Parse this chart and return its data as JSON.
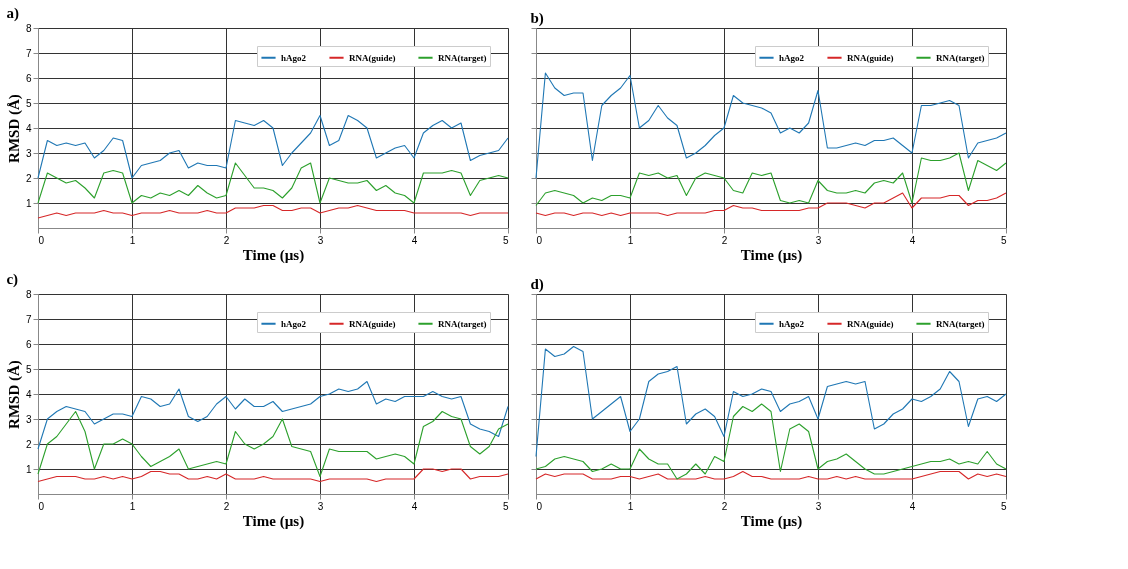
{
  "chart_data": [
    {
      "type": "line",
      "title": "a)",
      "xlabel": "Time (µs)",
      "ylabel": "RMSD (Å)",
      "xlim": [
        0,
        5
      ],
      "xticks": [
        0,
        1,
        2,
        3,
        4,
        5
      ],
      "ylim": [
        0,
        8
      ],
      "yticks": [
        1,
        2,
        3,
        4,
        5,
        6,
        7,
        8
      ],
      "grid": true,
      "legend": "top right",
      "x": [
        0,
        0.1,
        0.2,
        0.3,
        0.4,
        0.5,
        0.6,
        0.7,
        0.8,
        0.9,
        1,
        1.1,
        1.2,
        1.3,
        1.4,
        1.5,
        1.6,
        1.7,
        1.8,
        1.9,
        2,
        2.1,
        2.2,
        2.3,
        2.4,
        2.5,
        2.6,
        2.7,
        2.8,
        2.9,
        3,
        3.1,
        3.2,
        3.3,
        3.4,
        3.5,
        3.6,
        3.7,
        3.8,
        3.9,
        4,
        4.1,
        4.2,
        4.3,
        4.4,
        4.5,
        4.6,
        4.7,
        4.8,
        4.9,
        5
      ],
      "series": [
        {
          "name": "hAgo2",
          "color": "#1f77b4",
          "values": [
            2.0,
            3.5,
            3.3,
            3.4,
            3.3,
            3.4,
            2.8,
            3.1,
            3.6,
            3.5,
            2.0,
            2.5,
            2.6,
            2.7,
            3.0,
            3.1,
            2.4,
            2.6,
            2.5,
            2.5,
            2.4,
            4.3,
            4.2,
            4.1,
            4.3,
            4.0,
            2.5,
            3.0,
            3.4,
            3.8,
            4.5,
            3.3,
            3.5,
            4.5,
            4.3,
            4.0,
            2.8,
            3.0,
            3.2,
            3.3,
            2.8,
            3.8,
            4.1,
            4.3,
            4.0,
            4.2,
            2.7,
            2.9,
            3.0,
            3.1,
            3.6
          ]
        },
        {
          "name": "RNA(guide)",
          "color": "#d62728",
          "values": [
            0.4,
            0.5,
            0.6,
            0.5,
            0.6,
            0.6,
            0.6,
            0.7,
            0.6,
            0.6,
            0.5,
            0.6,
            0.6,
            0.6,
            0.7,
            0.6,
            0.6,
            0.6,
            0.7,
            0.6,
            0.6,
            0.8,
            0.8,
            0.8,
            0.9,
            0.9,
            0.7,
            0.7,
            0.8,
            0.8,
            0.6,
            0.7,
            0.8,
            0.8,
            0.9,
            0.8,
            0.7,
            0.7,
            0.7,
            0.7,
            0.6,
            0.6,
            0.6,
            0.6,
            0.6,
            0.6,
            0.5,
            0.6,
            0.6,
            0.6,
            0.6
          ]
        },
        {
          "name": "RNA(target)",
          "color": "#2ca02c",
          "values": [
            1.0,
            2.2,
            2.0,
            1.8,
            1.9,
            1.6,
            1.2,
            2.2,
            2.3,
            2.2,
            1.0,
            1.3,
            1.2,
            1.4,
            1.3,
            1.5,
            1.3,
            1.7,
            1.4,
            1.2,
            1.3,
            2.6,
            2.1,
            1.6,
            1.6,
            1.5,
            1.2,
            1.6,
            2.4,
            2.6,
            1.0,
            2.0,
            1.9,
            1.8,
            1.8,
            1.9,
            1.5,
            1.7,
            1.4,
            1.3,
            1.0,
            2.2,
            2.2,
            2.2,
            2.3,
            2.2,
            1.3,
            1.9,
            2.0,
            2.1,
            2.0
          ]
        }
      ]
    },
    {
      "type": "line",
      "title": "b)",
      "xlabel": "Time (µs)",
      "xlim": [
        0,
        5
      ],
      "xticks": [
        0,
        1,
        2,
        3,
        4,
        5
      ],
      "ylim": [
        0,
        8
      ],
      "yticks": [
        1,
        2,
        3,
        4,
        5,
        6,
        7,
        8
      ],
      "grid": true,
      "legend": "top right",
      "tick_labels": "x",
      "x": [
        0,
        0.1,
        0.2,
        0.3,
        0.4,
        0.5,
        0.6,
        0.7,
        0.8,
        0.9,
        1,
        1.1,
        1.2,
        1.3,
        1.4,
        1.5,
        1.6,
        1.7,
        1.8,
        1.9,
        2,
        2.1,
        2.2,
        2.3,
        2.4,
        2.5,
        2.6,
        2.7,
        2.8,
        2.9,
        3,
        3.1,
        3.2,
        3.3,
        3.4,
        3.5,
        3.6,
        3.7,
        3.8,
        3.9,
        4,
        4.1,
        4.2,
        4.3,
        4.4,
        4.5,
        4.6,
        4.7,
        4.8,
        4.9,
        5
      ],
      "series": [
        {
          "name": "hAgo2",
          "color": "#1f77b4",
          "values": [
            2.0,
            6.2,
            5.6,
            5.3,
            5.4,
            5.4,
            2.7,
            4.9,
            5.3,
            5.6,
            6.1,
            4.0,
            4.3,
            4.9,
            4.4,
            4.1,
            2.8,
            3.0,
            3.3,
            3.7,
            4.0,
            5.3,
            5.0,
            4.9,
            4.8,
            4.6,
            3.8,
            4.0,
            3.8,
            4.2,
            5.5,
            3.2,
            3.2,
            3.3,
            3.4,
            3.3,
            3.5,
            3.5,
            3.6,
            3.3,
            3.0,
            4.9,
            4.9,
            5.0,
            5.1,
            4.9,
            2.8,
            3.4,
            3.5,
            3.6,
            3.8
          ]
        },
        {
          "name": "RNA(guide)",
          "color": "#d62728",
          "values": [
            0.6,
            0.5,
            0.6,
            0.6,
            0.5,
            0.6,
            0.6,
            0.5,
            0.6,
            0.5,
            0.6,
            0.6,
            0.6,
            0.6,
            0.5,
            0.6,
            0.6,
            0.6,
            0.6,
            0.7,
            0.7,
            0.9,
            0.8,
            0.8,
            0.7,
            0.7,
            0.7,
            0.7,
            0.7,
            0.8,
            0.8,
            1.0,
            1.0,
            1.0,
            0.9,
            0.8,
            1.0,
            1.0,
            1.2,
            1.4,
            0.8,
            1.2,
            1.2,
            1.2,
            1.3,
            1.3,
            0.9,
            1.1,
            1.1,
            1.2,
            1.4
          ]
        },
        {
          "name": "RNA(target)",
          "color": "#2ca02c",
          "values": [
            0.9,
            1.4,
            1.5,
            1.4,
            1.3,
            1.0,
            1.2,
            1.1,
            1.3,
            1.3,
            1.2,
            2.2,
            2.1,
            2.2,
            2.0,
            2.1,
            1.3,
            2.0,
            2.2,
            2.1,
            2.0,
            1.5,
            1.4,
            2.2,
            2.1,
            2.2,
            1.1,
            1.0,
            1.1,
            1.0,
            1.9,
            1.5,
            1.4,
            1.4,
            1.5,
            1.4,
            1.8,
            1.9,
            1.8,
            2.2,
            1.0,
            2.8,
            2.7,
            2.7,
            2.8,
            3.0,
            1.5,
            2.7,
            2.5,
            2.3,
            2.6
          ]
        }
      ]
    },
    {
      "type": "line",
      "title": "c)",
      "xlabel": "Time (µs)",
      "ylabel": "RMSD (Å)",
      "xlim": [
        0,
        5
      ],
      "xticks": [
        0,
        1,
        2,
        3,
        4,
        5
      ],
      "ylim": [
        0,
        8
      ],
      "yticks": [
        1,
        2,
        3,
        4,
        5,
        6,
        7,
        8
      ],
      "grid": true,
      "legend": "top right",
      "x": [
        0,
        0.1,
        0.2,
        0.3,
        0.4,
        0.5,
        0.6,
        0.7,
        0.8,
        0.9,
        1,
        1.1,
        1.2,
        1.3,
        1.4,
        1.5,
        1.6,
        1.7,
        1.8,
        1.9,
        2,
        2.1,
        2.2,
        2.3,
        2.4,
        2.5,
        2.6,
        2.7,
        2.8,
        2.9,
        3,
        3.1,
        3.2,
        3.3,
        3.4,
        3.5,
        3.6,
        3.7,
        3.8,
        3.9,
        4,
        4.1,
        4.2,
        4.3,
        4.4,
        4.5,
        4.6,
        4.7,
        4.8,
        4.9,
        5
      ],
      "series": [
        {
          "name": "hAgo2",
          "color": "#1f77b4",
          "values": [
            1.8,
            3.0,
            3.3,
            3.5,
            3.4,
            3.3,
            2.8,
            3.0,
            3.2,
            3.2,
            3.1,
            3.9,
            3.8,
            3.5,
            3.6,
            4.2,
            3.1,
            2.9,
            3.1,
            3.6,
            3.9,
            3.4,
            3.8,
            3.5,
            3.5,
            3.7,
            3.3,
            3.4,
            3.5,
            3.6,
            3.9,
            4.0,
            4.2,
            4.1,
            4.2,
            4.5,
            3.6,
            3.8,
            3.7,
            3.9,
            3.9,
            3.9,
            4.1,
            3.9,
            3.8,
            3.9,
            2.8,
            2.6,
            2.5,
            2.3,
            3.5
          ]
        },
        {
          "name": "RNA(guide)",
          "color": "#d62728",
          "values": [
            0.5,
            0.6,
            0.7,
            0.7,
            0.7,
            0.6,
            0.6,
            0.7,
            0.6,
            0.7,
            0.6,
            0.7,
            0.9,
            0.9,
            0.8,
            0.8,
            0.6,
            0.6,
            0.7,
            0.6,
            0.8,
            0.6,
            0.6,
            0.6,
            0.7,
            0.6,
            0.6,
            0.6,
            0.6,
            0.6,
            0.5,
            0.6,
            0.6,
            0.6,
            0.6,
            0.6,
            0.5,
            0.6,
            0.6,
            0.6,
            0.6,
            1.0,
            1.0,
            0.9,
            1.0,
            1.0,
            0.6,
            0.7,
            0.7,
            0.7,
            0.8
          ]
        },
        {
          "name": "RNA(target)",
          "color": "#2ca02c",
          "values": [
            0.8,
            2.0,
            2.3,
            2.8,
            3.3,
            2.5,
            1.0,
            2.0,
            2.0,
            2.2,
            2.0,
            1.5,
            1.1,
            1.3,
            1.5,
            1.8,
            1.0,
            1.1,
            1.2,
            1.3,
            1.2,
            2.5,
            2.0,
            1.8,
            2.0,
            2.3,
            3.0,
            1.9,
            1.8,
            1.7,
            0.7,
            1.8,
            1.7,
            1.7,
            1.7,
            1.7,
            1.4,
            1.5,
            1.6,
            1.5,
            1.2,
            2.7,
            2.9,
            3.3,
            3.1,
            3.0,
            1.9,
            1.6,
            1.9,
            2.6,
            2.8
          ]
        }
      ]
    },
    {
      "type": "line",
      "title": "d)",
      "xlabel": "Time (µs)",
      "xlim": [
        0,
        5
      ],
      "xticks": [
        0,
        1,
        2,
        3,
        4,
        5
      ],
      "ylim": [
        0,
        8
      ],
      "yticks": [
        1,
        2,
        3,
        4,
        5,
        6,
        7,
        8
      ],
      "grid": true,
      "legend": "top right",
      "tick_labels": "x",
      "x": [
        0,
        0.1,
        0.2,
        0.3,
        0.4,
        0.5,
        0.6,
        0.7,
        0.8,
        0.9,
        1,
        1.1,
        1.2,
        1.3,
        1.4,
        1.5,
        1.6,
        1.7,
        1.8,
        1.9,
        2,
        2.1,
        2.2,
        2.3,
        2.4,
        2.5,
        2.6,
        2.7,
        2.8,
        2.9,
        3,
        3.1,
        3.2,
        3.3,
        3.4,
        3.5,
        3.6,
        3.7,
        3.8,
        3.9,
        4,
        4.1,
        4.2,
        4.3,
        4.4,
        4.5,
        4.6,
        4.7,
        4.8,
        4.9,
        5
      ],
      "series": [
        {
          "name": "hAgo2",
          "color": "#1f77b4",
          "values": [
            1.5,
            5.8,
            5.5,
            5.6,
            5.9,
            5.7,
            3.0,
            3.3,
            3.6,
            3.9,
            2.5,
            3.0,
            4.5,
            4.8,
            4.9,
            5.1,
            2.8,
            3.2,
            3.4,
            3.1,
            2.3,
            4.1,
            3.9,
            4.0,
            4.2,
            4.1,
            3.3,
            3.6,
            3.7,
            3.9,
            3.0,
            4.3,
            4.4,
            4.5,
            4.4,
            4.5,
            2.6,
            2.8,
            3.2,
            3.4,
            3.8,
            3.7,
            3.9,
            4.2,
            4.9,
            4.5,
            2.7,
            3.8,
            3.9,
            3.7,
            4.0
          ]
        },
        {
          "name": "RNA(guide)",
          "color": "#d62728",
          "values": [
            0.6,
            0.8,
            0.7,
            0.8,
            0.8,
            0.8,
            0.6,
            0.6,
            0.6,
            0.7,
            0.7,
            0.6,
            0.7,
            0.8,
            0.6,
            0.6,
            0.6,
            0.6,
            0.7,
            0.6,
            0.6,
            0.7,
            0.9,
            0.7,
            0.7,
            0.6,
            0.6,
            0.6,
            0.6,
            0.7,
            0.6,
            0.6,
            0.7,
            0.6,
            0.7,
            0.6,
            0.6,
            0.6,
            0.6,
            0.6,
            0.6,
            0.7,
            0.8,
            0.9,
            0.9,
            0.9,
            0.6,
            0.8,
            0.7,
            0.8,
            0.7
          ]
        },
        {
          "name": "RNA(target)",
          "color": "#2ca02c",
          "values": [
            1.0,
            1.1,
            1.4,
            1.5,
            1.4,
            1.3,
            0.9,
            1.0,
            1.2,
            1.0,
            1.0,
            1.8,
            1.4,
            1.2,
            1.2,
            0.6,
            0.8,
            1.2,
            0.8,
            1.5,
            1.3,
            3.1,
            3.5,
            3.3,
            3.6,
            3.3,
            0.9,
            2.6,
            2.8,
            2.5,
            1.0,
            1.3,
            1.4,
            1.6,
            1.3,
            1.0,
            0.8,
            0.8,
            0.9,
            1.0,
            1.1,
            1.2,
            1.3,
            1.3,
            1.4,
            1.2,
            1.3,
            1.2,
            1.7,
            1.2,
            1.0
          ]
        }
      ]
    }
  ]
}
